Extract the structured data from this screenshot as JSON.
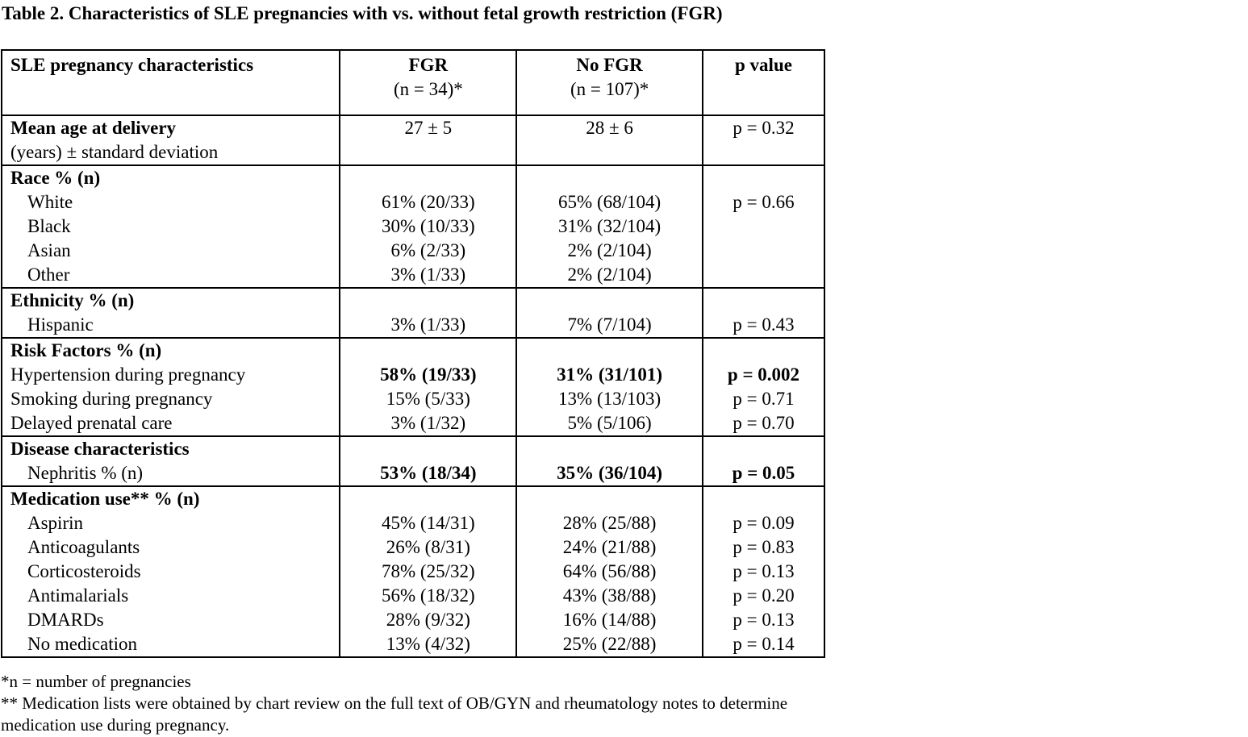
{
  "caption": "Table 2. Characteristics of SLE pregnancies with vs. without fetal growth restriction (FGR)",
  "header": {
    "col0": "SLE pregnancy characteristics",
    "col1_title": "FGR",
    "col1_sub": "(n = 34)*",
    "col2_title": "No FGR",
    "col2_sub": "(n = 107)*",
    "col3": "p value"
  },
  "age": {
    "label": "Mean age at delivery",
    "sublabel": "(years) ± standard deviation",
    "fgr": "27 ± 5",
    "nofgr": "28 ± 6",
    "p": "p = 0.32"
  },
  "race": {
    "label": "Race % (n)",
    "rows": [
      {
        "label": "White",
        "fgr": "61% (20/33)",
        "nofgr": "65% (68/104)",
        "p": "p = 0.66"
      },
      {
        "label": "Black",
        "fgr": "30% (10/33)",
        "nofgr": "31% (32/104)",
        "p": ""
      },
      {
        "label": "Asian",
        "fgr": "6% (2/33)",
        "nofgr": "2% (2/104)",
        "p": ""
      },
      {
        "label": "Other",
        "fgr": "3% (1/33)",
        "nofgr": "2% (2/104)",
        "p": ""
      }
    ]
  },
  "ethnicity": {
    "label": "Ethnicity % (n)",
    "rows": [
      {
        "label": "Hispanic",
        "fgr": "3% (1/33)",
        "nofgr": "7% (7/104)",
        "p": "p = 0.43"
      }
    ]
  },
  "risk": {
    "label": "Risk Factors % (n)",
    "rows": [
      {
        "label": "Hypertension during pregnancy",
        "fgr": "58% (19/33)",
        "nofgr": "31% (31/101)",
        "p": "p = 0.002"
      },
      {
        "label": "Smoking during pregnancy",
        "fgr": "15% (5/33)",
        "nofgr": "13% (13/103)",
        "p": "p = 0.71"
      },
      {
        "label": "Delayed prenatal care",
        "fgr": "3% (1/32)",
        "nofgr": "5% (5/106)",
        "p": "p = 0.70"
      }
    ]
  },
  "disease": {
    "label": "Disease characteristics",
    "rows": [
      {
        "label": "Nephritis % (n)",
        "fgr": "53% (18/34)",
        "nofgr": "35% (36/104)",
        "p": "p = 0.05"
      }
    ]
  },
  "medication": {
    "label": "Medication use** % (n)",
    "rows": [
      {
        "label": "Aspirin",
        "fgr": "45% (14/31)",
        "nofgr": "28% (25/88)",
        "p": "p = 0.09"
      },
      {
        "label": "Anticoagulants",
        "fgr": "26% (8/31)",
        "nofgr": "24% (21/88)",
        "p": "p = 0.83"
      },
      {
        "label": "Corticosteroids",
        "fgr": "78% (25/32)",
        "nofgr": "64% (56/88)",
        "p": "p = 0.13"
      },
      {
        "label": "Antimalarials",
        "fgr": "56% (18/32)",
        "nofgr": "43% (38/88)",
        "p": "p = 0.20"
      },
      {
        "label": "DMARDs",
        "fgr": "28% (9/32)",
        "nofgr": "16% (14/88)",
        "p": "p = 0.13"
      },
      {
        "label": "No medication",
        "fgr": "13% (4/32)",
        "nofgr": "25% (22/88)",
        "p": "p = 0.14"
      }
    ]
  },
  "notes": {
    "line1": "*n = number of pregnancies",
    "line2": "** Medication lists were obtained by chart review on the full text of OB/GYN and rheumatology notes to determine",
    "line3": "medication use during pregnancy."
  }
}
